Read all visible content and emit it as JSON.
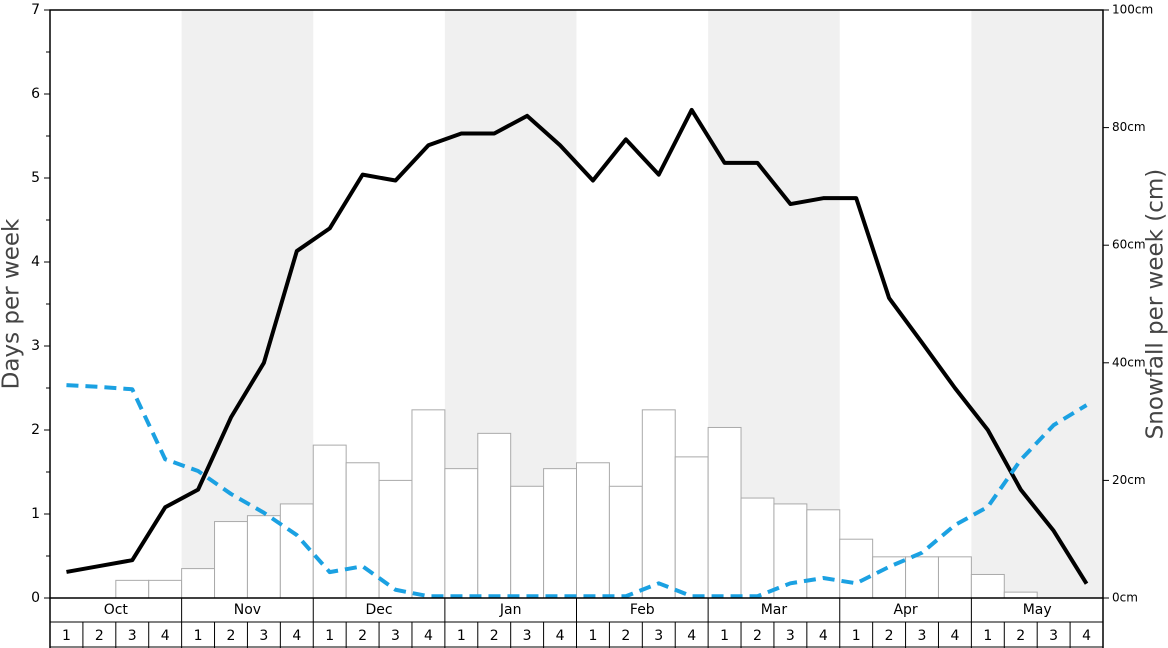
{
  "chart_data": {
    "type": "bar",
    "months": [
      "Oct",
      "Nov",
      "Dec",
      "Jan",
      "Feb",
      "Mar",
      "Apr",
      "May"
    ],
    "weeks": [
      1,
      2,
      3,
      4
    ],
    "ylabel": "Days per week",
    "y2label": "Snowfall per week (cm)",
    "ylim": [
      0,
      7
    ],
    "yticks": [
      0,
      1,
      2,
      3,
      4,
      5,
      6,
      7
    ],
    "y2lim": [
      0,
      100
    ],
    "y2ticks": [
      {
        "value": 0,
        "label": "0cm"
      },
      {
        "value": 20,
        "label": "20cm"
      },
      {
        "value": 40,
        "label": "40cm"
      },
      {
        "value": 60,
        "label": "60cm"
      },
      {
        "value": 80,
        "label": "80cm"
      },
      {
        "value": 100,
        "label": "100cm"
      }
    ],
    "series": [
      {
        "type": "bar",
        "axis": "y2",
        "color": "#ffffff",
        "values": [
          0,
          0,
          3,
          3,
          5,
          13,
          14,
          16,
          26,
          23,
          20,
          32,
          22,
          28,
          19,
          22,
          23,
          19,
          32,
          24,
          29,
          17,
          16,
          15,
          10,
          7,
          7,
          7,
          4,
          1,
          0,
          0
        ]
      },
      {
        "type": "line",
        "color": "#000000",
        "values": [
          0.31,
          0.38,
          0.45,
          1.08,
          1.29,
          2.15,
          2.8,
          4.13,
          4.4,
          5.04,
          4.97,
          5.39,
          5.53,
          5.53,
          5.74,
          5.39,
          4.97,
          5.46,
          5.04,
          5.81,
          5.18,
          5.18,
          4.69,
          4.76,
          4.76,
          3.57,
          3.04,
          2.5,
          2.0,
          1.29,
          0.8,
          0.17
        ]
      },
      {
        "type": "line",
        "axis": "y2",
        "color": "#1ba1e2",
        "dashed": true,
        "values": [
          36.2,
          35.9,
          35.5,
          23.6,
          21.6,
          17.7,
          14.5,
          10.7,
          4.4,
          5.4,
          1.4,
          0.3,
          0.3,
          0.3,
          0.3,
          0.3,
          0.3,
          0.3,
          2.5,
          0.3,
          0.3,
          0.3,
          2.5,
          3.4,
          2.5,
          5.3,
          7.7,
          12.4,
          15.5,
          23.5,
          29.4,
          32.8
        ]
      }
    ]
  }
}
